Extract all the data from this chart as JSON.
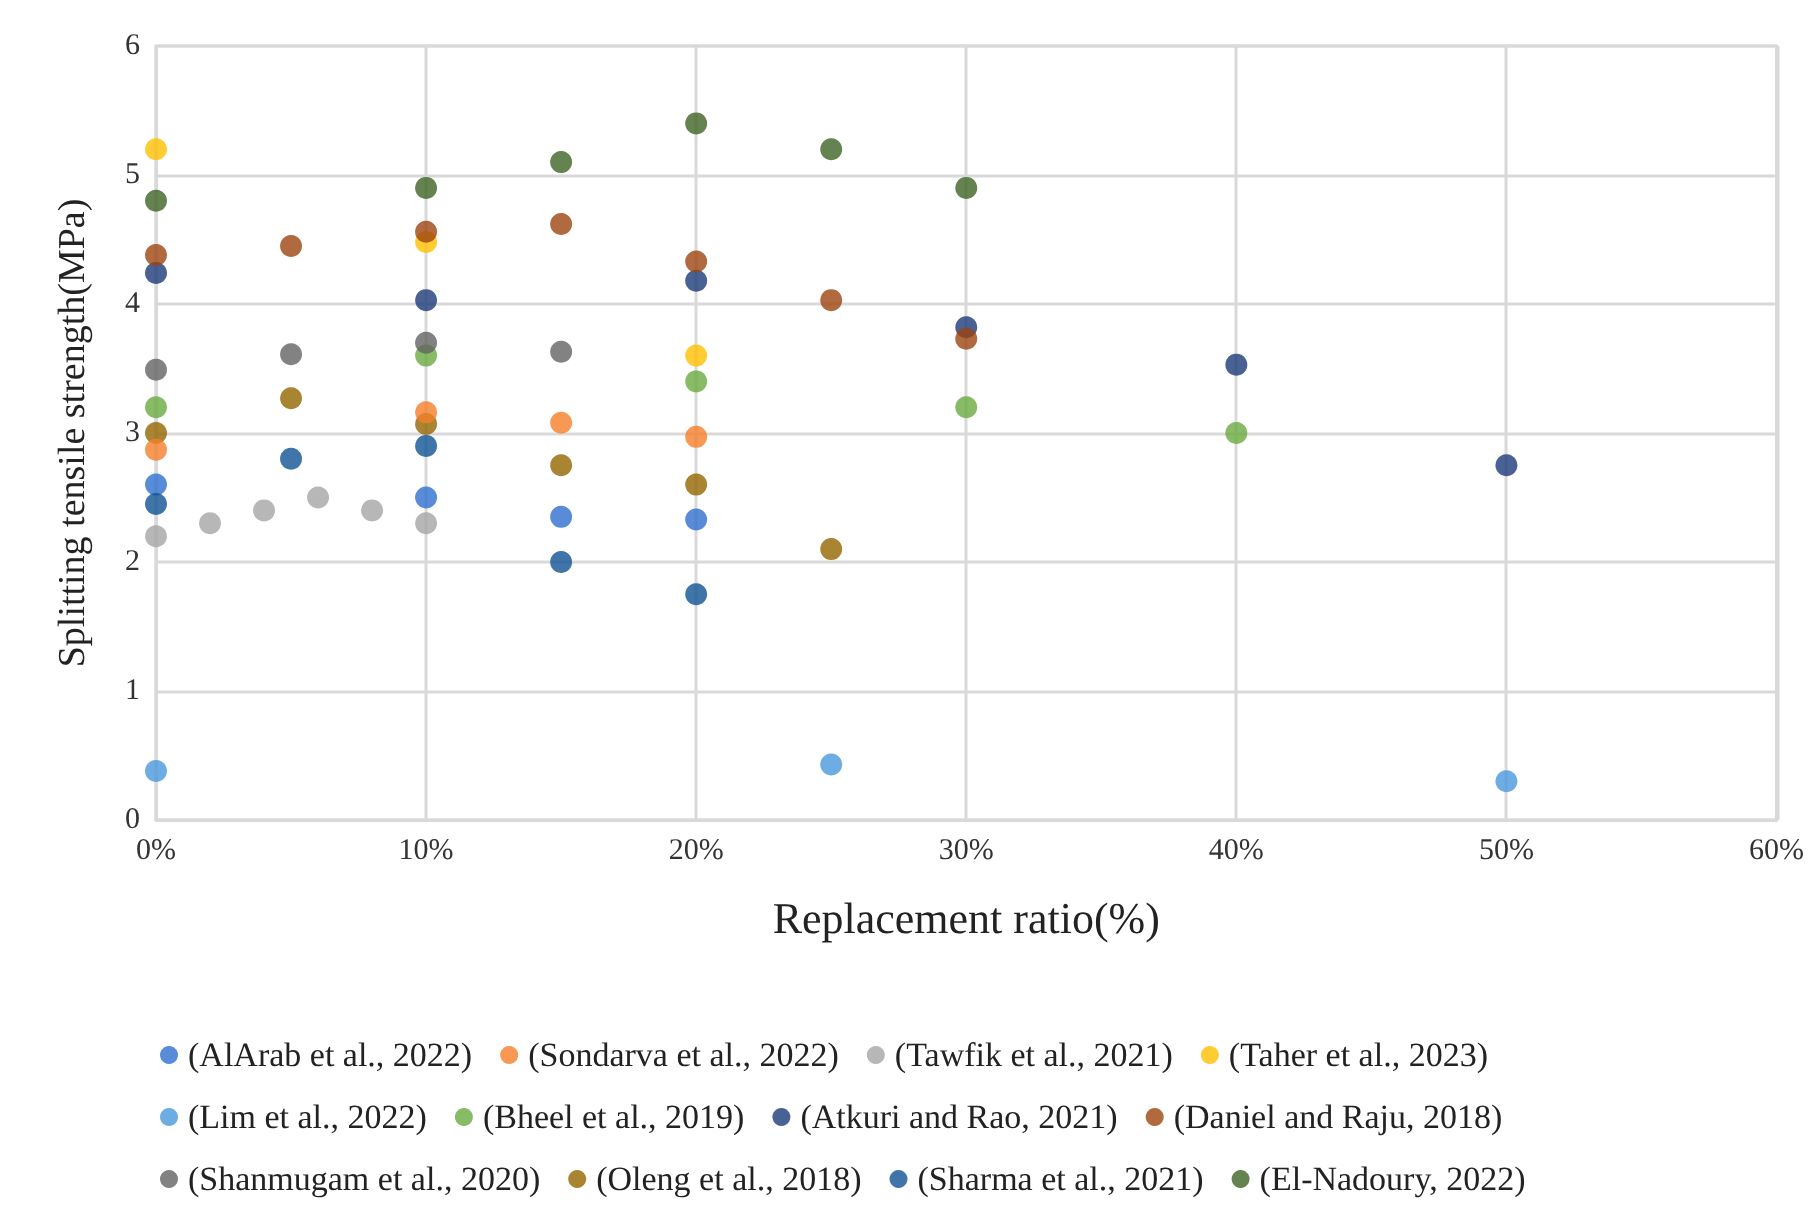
{
  "chart_data": {
    "type": "scatter",
    "xlabel": "Replacement ratio(%)",
    "ylabel": "Splitting tensile strength(MPa)",
    "xlim": [
      0,
      60
    ],
    "xticks": [
      {
        "value": 0,
        "label": "0%"
      },
      {
        "value": 10,
        "label": "10%"
      },
      {
        "value": 20,
        "label": "20%"
      },
      {
        "value": 30,
        "label": "30%"
      },
      {
        "value": 40,
        "label": "40%"
      },
      {
        "value": 50,
        "label": "50%"
      },
      {
        "value": 60,
        "label": "60%"
      }
    ],
    "ylim": [
      0,
      6
    ],
    "yticks": [
      0,
      1,
      2,
      3,
      4,
      5,
      6
    ],
    "grid": true,
    "legend": "bottom",
    "marker": "circle",
    "series": [
      {
        "name": "(AlArab et al., 2022)",
        "color": "#2e6fd0",
        "x": [
          0,
          10,
          15,
          20
        ],
        "values": [
          2.6,
          2.5,
          2.35,
          2.33
        ]
      },
      {
        "name": "(Sondarva et al., 2022)",
        "color": "#f57f2a",
        "x": [
          0,
          10,
          15,
          20
        ],
        "values": [
          2.87,
          3.16,
          3.08,
          2.97
        ]
      },
      {
        "name": "(Tawfik et al., 2021)",
        "color": "#a5a5a5",
        "x": [
          0,
          2,
          4,
          6,
          8,
          10
        ],
        "values": [
          2.2,
          2.3,
          2.4,
          2.5,
          2.4,
          2.3
        ]
      },
      {
        "name": "(Taher et al., 2023)",
        "color": "#ffc000",
        "x": [
          0,
          10,
          20
        ],
        "values": [
          5.2,
          4.48,
          3.6
        ]
      },
      {
        "name": "(Lim et al., 2022)",
        "color": "#4a98dc",
        "x": [
          0,
          25,
          50
        ],
        "values": [
          0.38,
          0.43,
          0.3
        ]
      },
      {
        "name": "(Bheel et al., 2019)",
        "color": "#6aaa3f",
        "x": [
          0,
          10,
          20,
          30,
          40
        ],
        "values": [
          3.2,
          3.6,
          3.4,
          3.2,
          3.0
        ]
      },
      {
        "name": "(Atkuri and Rao, 2021)",
        "color": "#1b3a78",
        "x": [
          0,
          10,
          20,
          30,
          40,
          50
        ],
        "values": [
          4.24,
          4.03,
          4.18,
          3.82,
          3.53,
          2.75
        ]
      },
      {
        "name": "(Daniel and Raju, 2018)",
        "color": "#9e4310",
        "x": [
          0,
          5,
          10,
          15,
          20,
          25,
          30
        ],
        "values": [
          4.38,
          4.45,
          4.56,
          4.62,
          4.33,
          4.03,
          3.73
        ]
      },
      {
        "name": "(Shanmugam et al., 2020)",
        "color": "#636363",
        "x": [
          0,
          5,
          10,
          15
        ],
        "values": [
          3.49,
          3.61,
          3.7,
          3.63
        ]
      },
      {
        "name": "(Oleng et al., 2018)",
        "color": "#946500",
        "x": [
          0,
          5,
          10,
          15,
          20,
          25
        ],
        "values": [
          3.0,
          3.27,
          3.07,
          2.75,
          2.6,
          2.1
        ]
      },
      {
        "name": "(Sharma et al., 2021)",
        "color": "#0f5393",
        "x": [
          0,
          5,
          10,
          15,
          20
        ],
        "values": [
          2.45,
          2.8,
          2.9,
          2.0,
          1.75
        ]
      },
      {
        "name": "(El-Nadoury, 2022)",
        "color": "#3f6425",
        "x": [
          0,
          10,
          15,
          20,
          25,
          30
        ],
        "values": [
          4.8,
          4.9,
          5.1,
          5.4,
          5.2,
          4.9
        ]
      }
    ]
  }
}
